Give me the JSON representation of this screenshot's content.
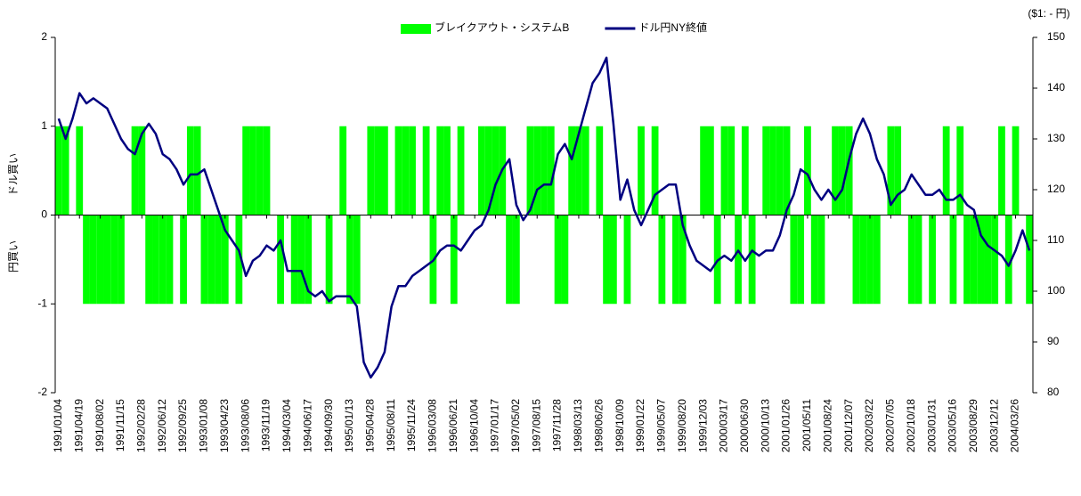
{
  "chart_data": {
    "type": "combo",
    "y2_unit": "($1: - 円)",
    "annotations": [
      "ドル買い",
      "円買い"
    ],
    "ylim": [
      -2,
      2
    ],
    "yticks": [
      -2,
      -1,
      0,
      1,
      2
    ],
    "y2lim": [
      80,
      150
    ],
    "y2ticks": [
      80,
      90,
      100,
      110,
      120,
      130,
      140,
      150
    ],
    "legend": "top",
    "categories": [
      "1991/01/04",
      null,
      null,
      "1991/04/19",
      null,
      null,
      "1991/08/02",
      null,
      null,
      "1991/11/15",
      null,
      null,
      "1992/02/28",
      null,
      null,
      "1992/06/12",
      null,
      null,
      "1992/09/25",
      null,
      null,
      "1993/01/08",
      null,
      null,
      "1993/04/23",
      null,
      null,
      "1993/08/06",
      null,
      null,
      "1993/11/19",
      null,
      null,
      "1994/03/04",
      null,
      null,
      "1994/06/17",
      null,
      null,
      "1994/09/30",
      null,
      null,
      "1995/01/13",
      null,
      null,
      "1995/04/28",
      null,
      null,
      "1995/08/11",
      null,
      null,
      "1995/11/24",
      null,
      null,
      "1996/03/08",
      null,
      null,
      "1996/06/21",
      null,
      null,
      "1996/10/04",
      null,
      null,
      "1997/01/17",
      null,
      null,
      "1997/05/02",
      null,
      null,
      "1997/08/15",
      null,
      null,
      "1997/11/28",
      null,
      null,
      "1998/03/13",
      null,
      null,
      "1998/06/26",
      null,
      null,
      "1998/10/09",
      null,
      null,
      "1999/01/22",
      null,
      null,
      "1999/05/07",
      null,
      null,
      "1999/08/20",
      null,
      null,
      "1999/12/03",
      null,
      null,
      "2000/03/17",
      null,
      null,
      "2000/06/30",
      null,
      null,
      "2000/10/13",
      null,
      null,
      "2001/01/26",
      null,
      null,
      "2001/05/11",
      null,
      null,
      "2001/08/24",
      null,
      null,
      "2001/12/07",
      null,
      null,
      "2002/03/22",
      null,
      null,
      "2002/07/05",
      null,
      null,
      "2002/10/18",
      null,
      null,
      "2003/01/31",
      null,
      null,
      "2003/05/16",
      null,
      null,
      "2003/08/29",
      null,
      null,
      "2003/12/12",
      null,
      null,
      "2004/03/26",
      null,
      null
    ],
    "series": [
      {
        "name": "ブレイクアウト・システムB",
        "type": "bar",
        "color": "#00ff00",
        "values": [
          1,
          1,
          0,
          1,
          -1,
          -1,
          -1,
          -1,
          -1,
          -1,
          0,
          1,
          1,
          -1,
          -1,
          -1,
          -1,
          0,
          -1,
          1,
          1,
          -1,
          -1,
          -1,
          -1,
          0,
          -1,
          1,
          1,
          1,
          1,
          0,
          -1,
          0,
          -1,
          -1,
          -1,
          0,
          0,
          -1,
          0,
          1,
          -1,
          -1,
          0,
          1,
          1,
          1,
          0,
          1,
          1,
          1,
          0,
          1,
          -1,
          1,
          1,
          -1,
          1,
          0,
          0,
          1,
          1,
          1,
          1,
          -1,
          -1,
          0,
          1,
          1,
          1,
          1,
          -1,
          -1,
          1,
          1,
          1,
          0,
          1,
          -1,
          -1,
          0,
          -1,
          0,
          1,
          0,
          1,
          -1,
          0,
          -1,
          -1,
          0,
          0,
          1,
          1,
          -1,
          1,
          1,
          -1,
          1,
          -1,
          0,
          1,
          1,
          1,
          1,
          -1,
          -1,
          1,
          -1,
          -1,
          0,
          1,
          1,
          1,
          -1,
          -1,
          -1,
          -1,
          0,
          1,
          1,
          0,
          -1,
          -1,
          0,
          -1,
          0,
          1,
          -1,
          1,
          -1,
          -1,
          -1,
          -1,
          -1,
          1,
          -1,
          1,
          0,
          -1
        ]
      },
      {
        "name": "ドル円NY終値",
        "type": "line",
        "axis": "y2",
        "color": "#000080",
        "values": [
          134,
          130,
          134,
          139,
          137,
          138,
          137,
          136,
          133,
          130,
          128,
          127,
          131,
          133,
          131,
          127,
          126,
          124,
          121,
          123,
          123,
          124,
          120,
          116,
          112,
          110,
          108,
          103,
          106,
          107,
          109,
          108,
          110,
          104,
          104,
          104,
          100,
          99,
          100,
          98,
          99,
          99,
          99,
          97,
          86,
          83,
          85,
          88,
          97,
          101,
          101,
          103,
          104,
          105,
          106,
          108,
          109,
          109,
          108,
          110,
          112,
          113,
          116,
          121,
          124,
          126,
          117,
          114,
          116,
          120,
          121,
          121,
          127,
          129,
          126,
          131,
          136,
          141,
          143,
          146,
          133,
          118,
          122,
          116,
          113,
          116,
          119,
          120,
          121,
          121,
          113,
          109,
          106,
          105,
          104,
          106,
          107,
          106,
          108,
          106,
          108,
          107,
          108,
          108,
          111,
          116,
          119,
          124,
          123,
          120,
          118,
          120,
          118,
          120,
          126,
          131,
          134,
          131,
          126,
          123,
          117,
          119,
          120,
          123,
          121,
          119,
          119,
          120,
          118,
          118,
          119,
          117,
          116,
          111,
          109,
          108,
          107,
          105,
          108,
          112,
          108
        ]
      }
    ]
  }
}
